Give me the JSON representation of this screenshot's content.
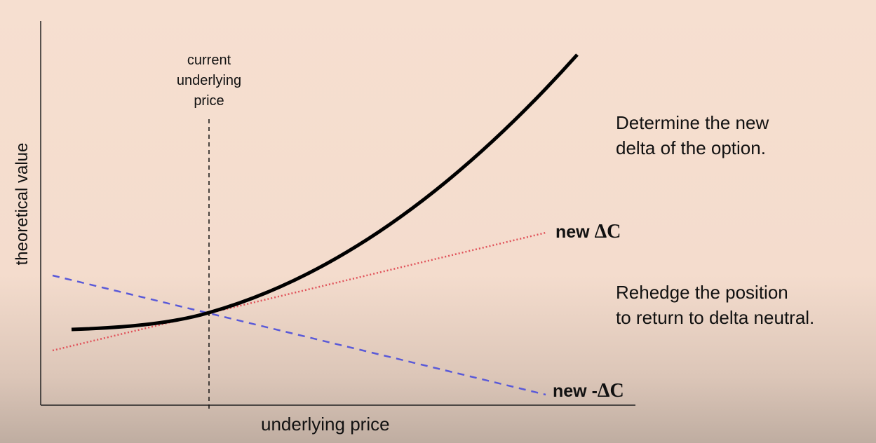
{
  "axes": {
    "x_label": "underlying price",
    "y_label": "theoretical value"
  },
  "marker_label": [
    "current",
    "underlying",
    "price"
  ],
  "notes": {
    "determine": [
      "Determine the new",
      "delta of the option."
    ],
    "rehedge": [
      "Rehedge the position",
      "to return to delta neutral."
    ]
  },
  "lines": {
    "new_delta": {
      "prefix": "new ",
      "symbol": "ΔC",
      "color": "#e0525a",
      "style": "dotted"
    },
    "new_neg_delta": {
      "prefix": "new -",
      "symbol": "ΔC",
      "color": "#5a5ad8",
      "style": "dashed"
    },
    "option_curve": {
      "color": "#000000"
    }
  }
}
